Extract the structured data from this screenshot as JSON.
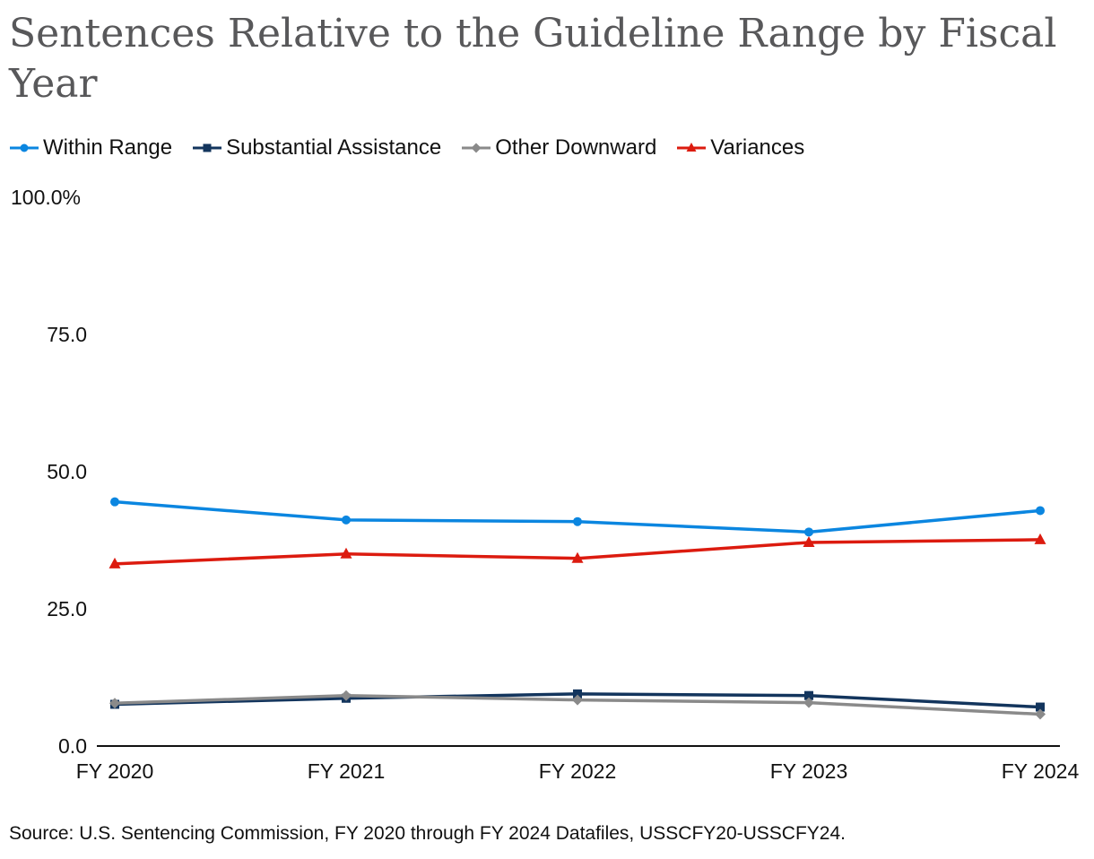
{
  "chart_data": {
    "type": "line",
    "title": "Sentences Relative to the Guideline Range by Fiscal Year",
    "categories": [
      "FY 2020",
      "FY 2021",
      "FY 2022",
      "FY 2023",
      "FY 2024"
    ],
    "series": [
      {
        "name": "Within Range",
        "color": "#0b86e0",
        "marker": "circle",
        "values": [
          44.5,
          41.2,
          40.9,
          39.0,
          42.9
        ]
      },
      {
        "name": "Substantial Assistance",
        "color": "#13355d",
        "marker": "square",
        "values": [
          7.6,
          8.7,
          9.5,
          9.2,
          7.1
        ]
      },
      {
        "name": "Other Downward",
        "color": "#8a8a8a",
        "marker": "diamond",
        "values": [
          7.8,
          9.2,
          8.4,
          7.9,
          5.8
        ]
      },
      {
        "name": "Variances",
        "color": "#dc1b0f",
        "marker": "triangle",
        "values": [
          33.2,
          35.0,
          34.2,
          37.1,
          37.6
        ]
      }
    ],
    "ylim": [
      0,
      100
    ],
    "yticks": [
      {
        "value": 0,
        "label": "0.0"
      },
      {
        "value": 25,
        "label": "25.0"
      },
      {
        "value": 50,
        "label": "50.0"
      },
      {
        "value": 75,
        "label": "75.0"
      },
      {
        "value": 100,
        "label": "100.0%"
      }
    ],
    "xlabel": "",
    "ylabel": "",
    "grid": false,
    "legend_position": "top-left",
    "source": "Source: U.S. Sentencing Commission, FY 2020 through FY 2024 Datafiles, USSCFY20-USSCFY24."
  }
}
